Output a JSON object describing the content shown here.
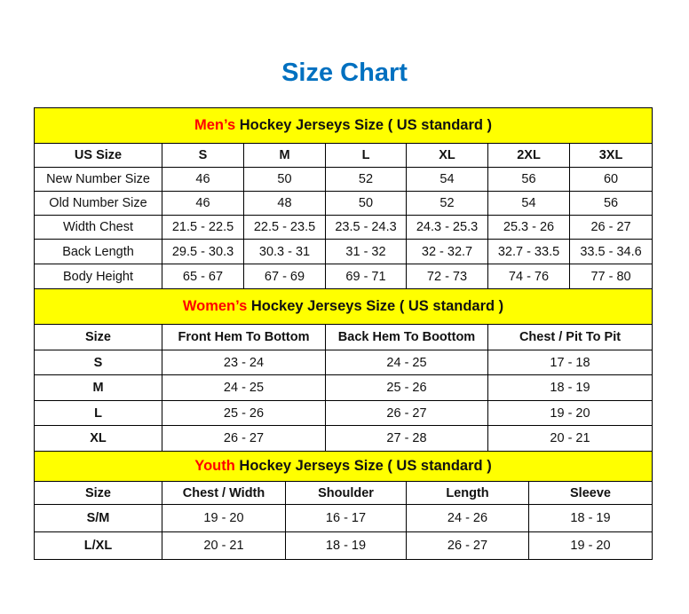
{
  "title": "Size Chart",
  "colors": {
    "title": "#0070c0",
    "header_bg": "#ffff00",
    "accent": "#ff0000"
  },
  "sections": [
    {
      "accent": "Men’s",
      "title": " Hockey Jerseys Size ( US standard )",
      "columns": [
        "US Size",
        "S",
        "M",
        "L",
        "XL",
        "2XL",
        "3XL"
      ],
      "rows": [
        [
          "New Number Size",
          "46",
          "50",
          "52",
          "54",
          "56",
          "60"
        ],
        [
          "Old Number Size",
          "46",
          "48",
          "50",
          "52",
          "54",
          "56"
        ],
        [
          "Width Chest",
          "21.5 - 22.5",
          "22.5 - 23.5",
          "23.5 - 24.3",
          "24.3 - 25.3",
          "25.3 - 26",
          "26 - 27"
        ],
        [
          "Back Length",
          "29.5 - 30.3",
          "30.3 - 31",
          "31 - 32",
          "32 - 32.7",
          "32.7 - 33.5",
          "33.5 - 34.6"
        ],
        [
          "Body Height",
          "65 - 67",
          "67 - 69",
          "69 - 71",
          "72 - 73",
          "74 - 76",
          "77 - 80"
        ]
      ]
    },
    {
      "accent": "Women’s",
      "title": " Hockey Jerseys Size ( US standard )",
      "columns": [
        "Size",
        "Front Hem To Bottom",
        "Back Hem To Boottom",
        "Chest / Pit To Pit"
      ],
      "rows": [
        [
          "S",
          "23 - 24",
          "24 - 25",
          "17 - 18"
        ],
        [
          "M",
          "24 - 25",
          "25 - 26",
          "18 - 19"
        ],
        [
          "L",
          "25 - 26",
          "26 - 27",
          "19 - 20"
        ],
        [
          "XL",
          "26 - 27",
          "27 - 28",
          "20 - 21"
        ]
      ]
    },
    {
      "accent": "Youth",
      "title": " Hockey Jerseys Size ( US standard )",
      "columns": [
        "Size",
        "Chest / Width",
        "Shoulder",
        "Length",
        "Sleeve"
      ],
      "rows": [
        [
          "S/M",
          "19 - 20",
          "16 - 17",
          "24 - 26",
          "18 - 19"
        ],
        [
          "L/XL",
          "20 - 21",
          "18 - 19",
          "26 - 27",
          "19 - 20"
        ]
      ]
    }
  ]
}
